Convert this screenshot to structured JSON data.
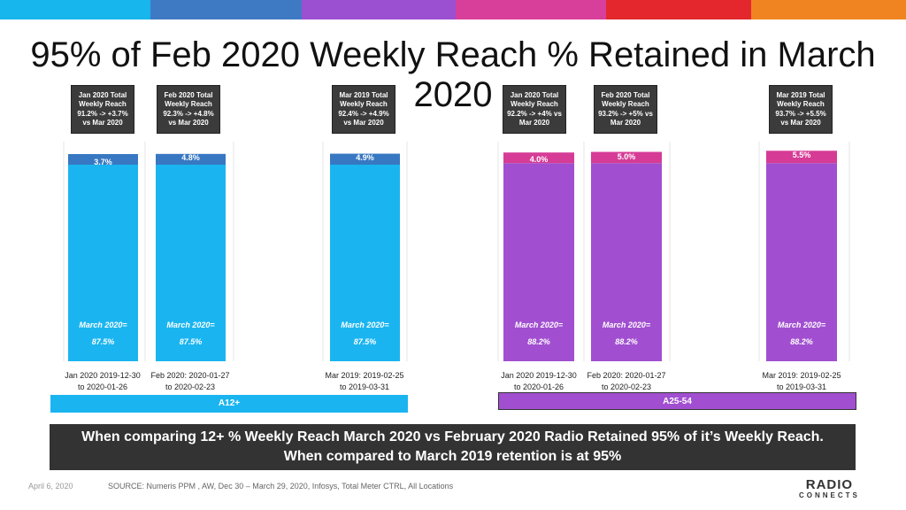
{
  "colors": {
    "top_bar": [
      "#17b6ec",
      "#3e7ac4",
      "#9b4fd1",
      "#d73f9a",
      "#e3272d",
      "#f08421"
    ],
    "a12_bar": "#1ab5f0",
    "a12_top": "#3878c2",
    "a25_bar": "#a14fd0",
    "a25_top": "#d63c96",
    "banner_bg": "#333333",
    "callout_bg": "#3b3b3b"
  },
  "title": "95% of Feb 2020 Weekly Reach % Retained in March 2020",
  "chart_data": {
    "type": "bar",
    "stacked": true,
    "ylim": [
      0,
      100
    ],
    "grid": false,
    "groups": [
      {
        "name": "A12+",
        "bars": [
          {
            "category": "Jan 2020 2019-12-30 to 2020-01-26",
            "base": 87.5,
            "top": 3.7,
            "top_label": "3.7%",
            "annotation_line1": "March 2020=",
            "annotation_line2": "87.5%",
            "callout": "Jan 2020 Total Weekly Reach 91.2% -> +3.7% vs Mar 2020"
          },
          {
            "category": "Feb 2020: 2020-01-27 to 2020-02-23",
            "base": 87.5,
            "top": 4.8,
            "top_label": "4.8%",
            "annotation_line1": "March 2020=",
            "annotation_line2": "87.5%",
            "callout": "Feb 2020 Total Weekly Reach 92.3% -> +4.8% vs Mar 2020"
          },
          {
            "category": "Mar 2019: 2019-02-25 to 2019-03-31",
            "base": 87.5,
            "top": 4.9,
            "top_label": "4.9%",
            "annotation_line1": "March 2020=",
            "annotation_line2": "87.5%",
            "callout": "Mar 2019 Total Weekly Reach 92.4% -> +4.9% vs Mar 2020"
          }
        ]
      },
      {
        "name": "A25-54",
        "bars": [
          {
            "category": "Jan 2020 2019-12-30 to 2020-01-26",
            "base": 88.2,
            "top": 4.0,
            "top_label": "4.0%",
            "annotation_line1": "March 2020=",
            "annotation_line2": "88.2%",
            "callout": "Jan 2020 Total Weekly Reach 92.2% -> +4% vs Mar 2020"
          },
          {
            "category": "Feb 2020: 2020-01-27 to 2020-02-23",
            "base": 88.2,
            "top": 5.0,
            "top_label": "5.0%",
            "annotation_line1": "March 2020=",
            "annotation_line2": "88.2%",
            "callout": "Feb 2020 Total Weekly Reach 93.2% -> +5% vs Mar 2020"
          },
          {
            "category": "Mar 2019: 2019-02-25 to 2019-03-31",
            "base": 88.2,
            "top": 5.5,
            "top_label": "5.5%",
            "annotation_line1": "March 2020=",
            "annotation_line2": "88.2%",
            "callout": "Mar 2019 Total Weekly Reach 93.7% -> +5.5% vs Mar 2020"
          }
        ]
      }
    ]
  },
  "bar_callouts": [
    {
      "l1": "Jan 2020 Total",
      "l2": "Weekly Reach",
      "l3": "91.2% -> +3.7%",
      "l4": "vs Mar 2020"
    },
    {
      "l1": "Feb 2020 Total",
      "l2": "Weekly Reach",
      "l3": "92.3% -> +4.8%",
      "l4": "vs Mar 2020"
    },
    {
      "l1": "Mar 2019 Total",
      "l2": "Weekly Reach",
      "l3": "92.4% -> +4.9%",
      "l4": "vs Mar 2020"
    },
    {
      "l1": "Jan 2020 Total",
      "l2": "Weekly Reach",
      "l3": "92.2% -> +4% vs",
      "l4": "Mar 2020"
    },
    {
      "l1": "Feb 2020 Total",
      "l2": "Weekly Reach",
      "l3": "93.2% -> +5% vs",
      "l4": "Mar 2020"
    },
    {
      "l1": "Mar 2019 Total",
      "l2": "Weekly Reach",
      "l3": "93.7% -> +5.5%",
      "l4": "vs Mar 2020"
    }
  ],
  "category_labels": [
    {
      "l1": "Jan 2020 2019-12-30",
      "l2": "to 2020-01-26"
    },
    {
      "l1": "Feb 2020: 2020-01-27",
      "l2": "to 2020-02-23"
    },
    {
      "l1": "Mar 2019: 2019-02-25",
      "l2": "to 2019-03-31"
    },
    {
      "l1": "Jan 2020 2019-12-30",
      "l2": "to 2020-01-26"
    },
    {
      "l1": "Feb 2020: 2020-01-27",
      "l2": "to 2020-02-23"
    },
    {
      "l1": "Mar 2019: 2019-02-25",
      "l2": "to 2019-03-31"
    }
  ],
  "group_labels": [
    "A12+",
    "A25-54"
  ],
  "banner": {
    "line1": "When comparing 12+ % Weekly Reach March 2020 vs February 2020 Radio Retained 95% of it’s Weekly Reach.",
    "line2": "When compared to March 2019 retention is at 95%"
  },
  "footer": {
    "date": "April 6, 2020",
    "source": "SOURCE: Numeris PPM , AW, Dec 30 – March 29, 2020,  Infosys, Total Meter CTRL, All Locations"
  },
  "logo": {
    "line1": "RADIO",
    "line2": "CONNECTS"
  }
}
